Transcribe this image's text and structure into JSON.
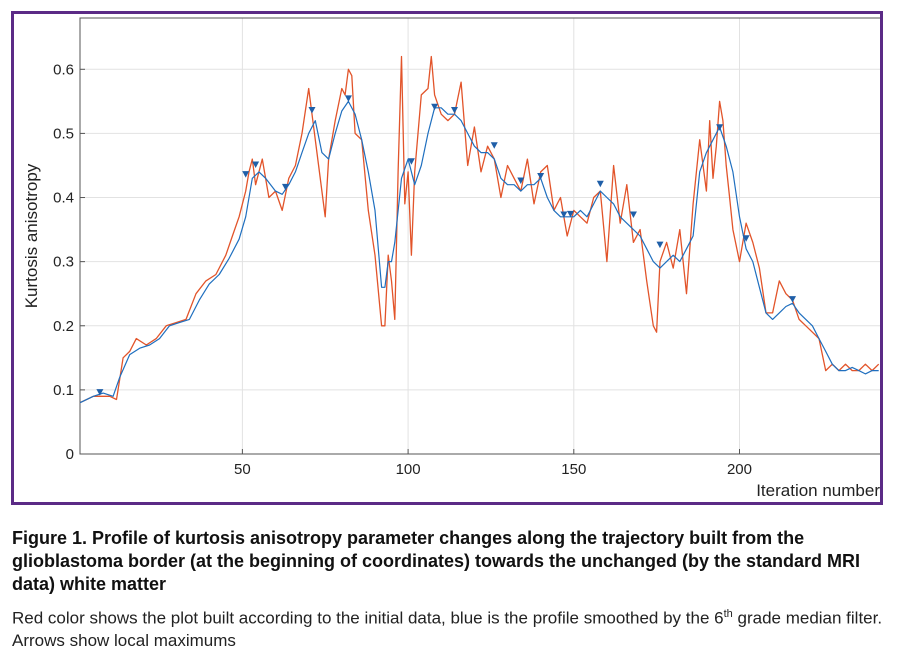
{
  "figure": {
    "caption_title": "Figure 1. Profile of kurtosis anisotropy parameter changes along the trajectory built from the glioblastoma border (at the beginning of coordinates) towards the unchanged (by the standard MRI data) white matter",
    "caption_note_a": "Red color shows the plot built according to the initial data, blue is the profile smoothed by the 6",
    "caption_note_sup": "th",
    "caption_note_b": " grade median filter. Arrows show local maximums",
    "frame_color": "#5b2a86"
  },
  "chart_data": {
    "type": "line",
    "xlabel": "Iteration number",
    "ylabel": "Kurtosis anisotropy",
    "xlim": [
      1,
      243
    ],
    "ylim": [
      0,
      0.68
    ],
    "xticks": [
      50,
      100,
      150,
      200
    ],
    "yticks": [
      0,
      0.1,
      0.2,
      0.3,
      0.4,
      0.5,
      0.6
    ],
    "grid": true,
    "series": [
      {
        "color": "#e2542a",
        "x": [
          1,
          5,
          10,
          12,
          14,
          16,
          18,
          21,
          24,
          27,
          30,
          33,
          36,
          39,
          42,
          45,
          47,
          49,
          51,
          52,
          53,
          54,
          56,
          58,
          60,
          62,
          64,
          66,
          68,
          70,
          71,
          73,
          75,
          76,
          78,
          80,
          81,
          82,
          83,
          84,
          86,
          88,
          90,
          92,
          93,
          94,
          95,
          96,
          97,
          98,
          99,
          100,
          101,
          102,
          104,
          106,
          107,
          108,
          110,
          112,
          114,
          116,
          118,
          120,
          122,
          124,
          126,
          128,
          130,
          132,
          134,
          136,
          138,
          140,
          142,
          144,
          146,
          148,
          150,
          152,
          154,
          156,
          158,
          160,
          162,
          164,
          166,
          168,
          170,
          172,
          174,
          175,
          176,
          178,
          180,
          182,
          184,
          186,
          188,
          190,
          191,
          192,
          193,
          194,
          195,
          196,
          197,
          198,
          200,
          202,
          204,
          206,
          208,
          210,
          212,
          214,
          216,
          218,
          220,
          222,
          224,
          226,
          228,
          230,
          232,
          234,
          236,
          238,
          240,
          242
        ],
        "y": [
          0.08,
          0.09,
          0.09,
          0.085,
          0.15,
          0.16,
          0.18,
          0.17,
          0.18,
          0.2,
          0.205,
          0.21,
          0.25,
          0.27,
          0.28,
          0.31,
          0.34,
          0.37,
          0.41,
          0.44,
          0.46,
          0.42,
          0.46,
          0.4,
          0.41,
          0.38,
          0.43,
          0.45,
          0.5,
          0.57,
          0.53,
          0.45,
          0.37,
          0.46,
          0.52,
          0.57,
          0.56,
          0.6,
          0.59,
          0.5,
          0.49,
          0.38,
          0.31,
          0.2,
          0.2,
          0.31,
          0.27,
          0.21,
          0.44,
          0.62,
          0.39,
          0.44,
          0.31,
          0.44,
          0.56,
          0.57,
          0.62,
          0.56,
          0.53,
          0.52,
          0.53,
          0.58,
          0.45,
          0.51,
          0.44,
          0.48,
          0.46,
          0.4,
          0.45,
          0.43,
          0.41,
          0.46,
          0.39,
          0.44,
          0.45,
          0.38,
          0.4,
          0.34,
          0.38,
          0.37,
          0.36,
          0.4,
          0.41,
          0.3,
          0.45,
          0.36,
          0.42,
          0.33,
          0.35,
          0.27,
          0.2,
          0.19,
          0.3,
          0.33,
          0.29,
          0.35,
          0.25,
          0.39,
          0.49,
          0.41,
          0.52,
          0.43,
          0.48,
          0.55,
          0.52,
          0.45,
          0.4,
          0.35,
          0.3,
          0.36,
          0.33,
          0.29,
          0.22,
          0.22,
          0.27,
          0.25,
          0.24,
          0.21,
          0.2,
          0.19,
          0.18,
          0.13,
          0.14,
          0.13,
          0.14,
          0.13,
          0.13,
          0.14,
          0.13,
          0.14
        ]
      },
      {
        "color": "#1f6fbf",
        "x": [
          1,
          5,
          8,
          11,
          13,
          16,
          19,
          22,
          25,
          28,
          31,
          34,
          37,
          40,
          43,
          46,
          49,
          51,
          53,
          55,
          57,
          60,
          62,
          64,
          66,
          68,
          70,
          72,
          74,
          76,
          78,
          80,
          82,
          84,
          86,
          88,
          90,
          92,
          93,
          94,
          95,
          96,
          98,
          100,
          102,
          104,
          106,
          108,
          110,
          112,
          114,
          116,
          118,
          120,
          122,
          124,
          126,
          128,
          130,
          132,
          134,
          136,
          138,
          140,
          142,
          144,
          146,
          148,
          150,
          152,
          154,
          156,
          158,
          160,
          162,
          164,
          166,
          168,
          170,
          172,
          174,
          176,
          178,
          180,
          182,
          184,
          186,
          188,
          190,
          192,
          193,
          194,
          196,
          198,
          200,
          202,
          204,
          206,
          208,
          210,
          212,
          214,
          216,
          218,
          220,
          222,
          224,
          226,
          228,
          230,
          232,
          234,
          236,
          238,
          240,
          242
        ],
        "y": [
          0.08,
          0.09,
          0.095,
          0.09,
          0.12,
          0.155,
          0.165,
          0.17,
          0.18,
          0.2,
          0.205,
          0.21,
          0.24,
          0.265,
          0.28,
          0.305,
          0.335,
          0.37,
          0.43,
          0.44,
          0.43,
          0.41,
          0.405,
          0.42,
          0.44,
          0.47,
          0.5,
          0.52,
          0.47,
          0.46,
          0.5,
          0.535,
          0.55,
          0.53,
          0.49,
          0.44,
          0.38,
          0.26,
          0.26,
          0.3,
          0.3,
          0.33,
          0.43,
          0.46,
          0.42,
          0.45,
          0.5,
          0.54,
          0.54,
          0.53,
          0.53,
          0.52,
          0.5,
          0.48,
          0.47,
          0.47,
          0.46,
          0.43,
          0.42,
          0.42,
          0.41,
          0.42,
          0.42,
          0.43,
          0.4,
          0.38,
          0.37,
          0.37,
          0.37,
          0.38,
          0.37,
          0.39,
          0.41,
          0.4,
          0.39,
          0.37,
          0.36,
          0.35,
          0.34,
          0.32,
          0.3,
          0.29,
          0.3,
          0.31,
          0.3,
          0.32,
          0.34,
          0.44,
          0.47,
          0.49,
          0.5,
          0.51,
          0.48,
          0.44,
          0.37,
          0.32,
          0.3,
          0.26,
          0.22,
          0.21,
          0.22,
          0.23,
          0.235,
          0.22,
          0.21,
          0.2,
          0.18,
          0.16,
          0.14,
          0.13,
          0.13,
          0.135,
          0.13,
          0.125,
          0.13,
          0.13
        ]
      }
    ],
    "local_maxima": [
      {
        "x": 7,
        "y": 0.095
      },
      {
        "x": 51,
        "y": 0.435
      },
      {
        "x": 54,
        "y": 0.45
      },
      {
        "x": 63,
        "y": 0.415
      },
      {
        "x": 71,
        "y": 0.535
      },
      {
        "x": 82,
        "y": 0.553
      },
      {
        "x": 101,
        "y": 0.455
      },
      {
        "x": 108,
        "y": 0.54
      },
      {
        "x": 114,
        "y": 0.535
      },
      {
        "x": 126,
        "y": 0.48
      },
      {
        "x": 134,
        "y": 0.425
      },
      {
        "x": 140,
        "y": 0.432
      },
      {
        "x": 147,
        "y": 0.372
      },
      {
        "x": 149,
        "y": 0.373
      },
      {
        "x": 158,
        "y": 0.42
      },
      {
        "x": 168,
        "y": 0.372
      },
      {
        "x": 176,
        "y": 0.325
      },
      {
        "x": 194,
        "y": 0.508
      },
      {
        "x": 202,
        "y": 0.335
      },
      {
        "x": 216,
        "y": 0.24
      }
    ],
    "marker_color": "#1f5fa8",
    "grid_color": "#e2e2e2"
  }
}
